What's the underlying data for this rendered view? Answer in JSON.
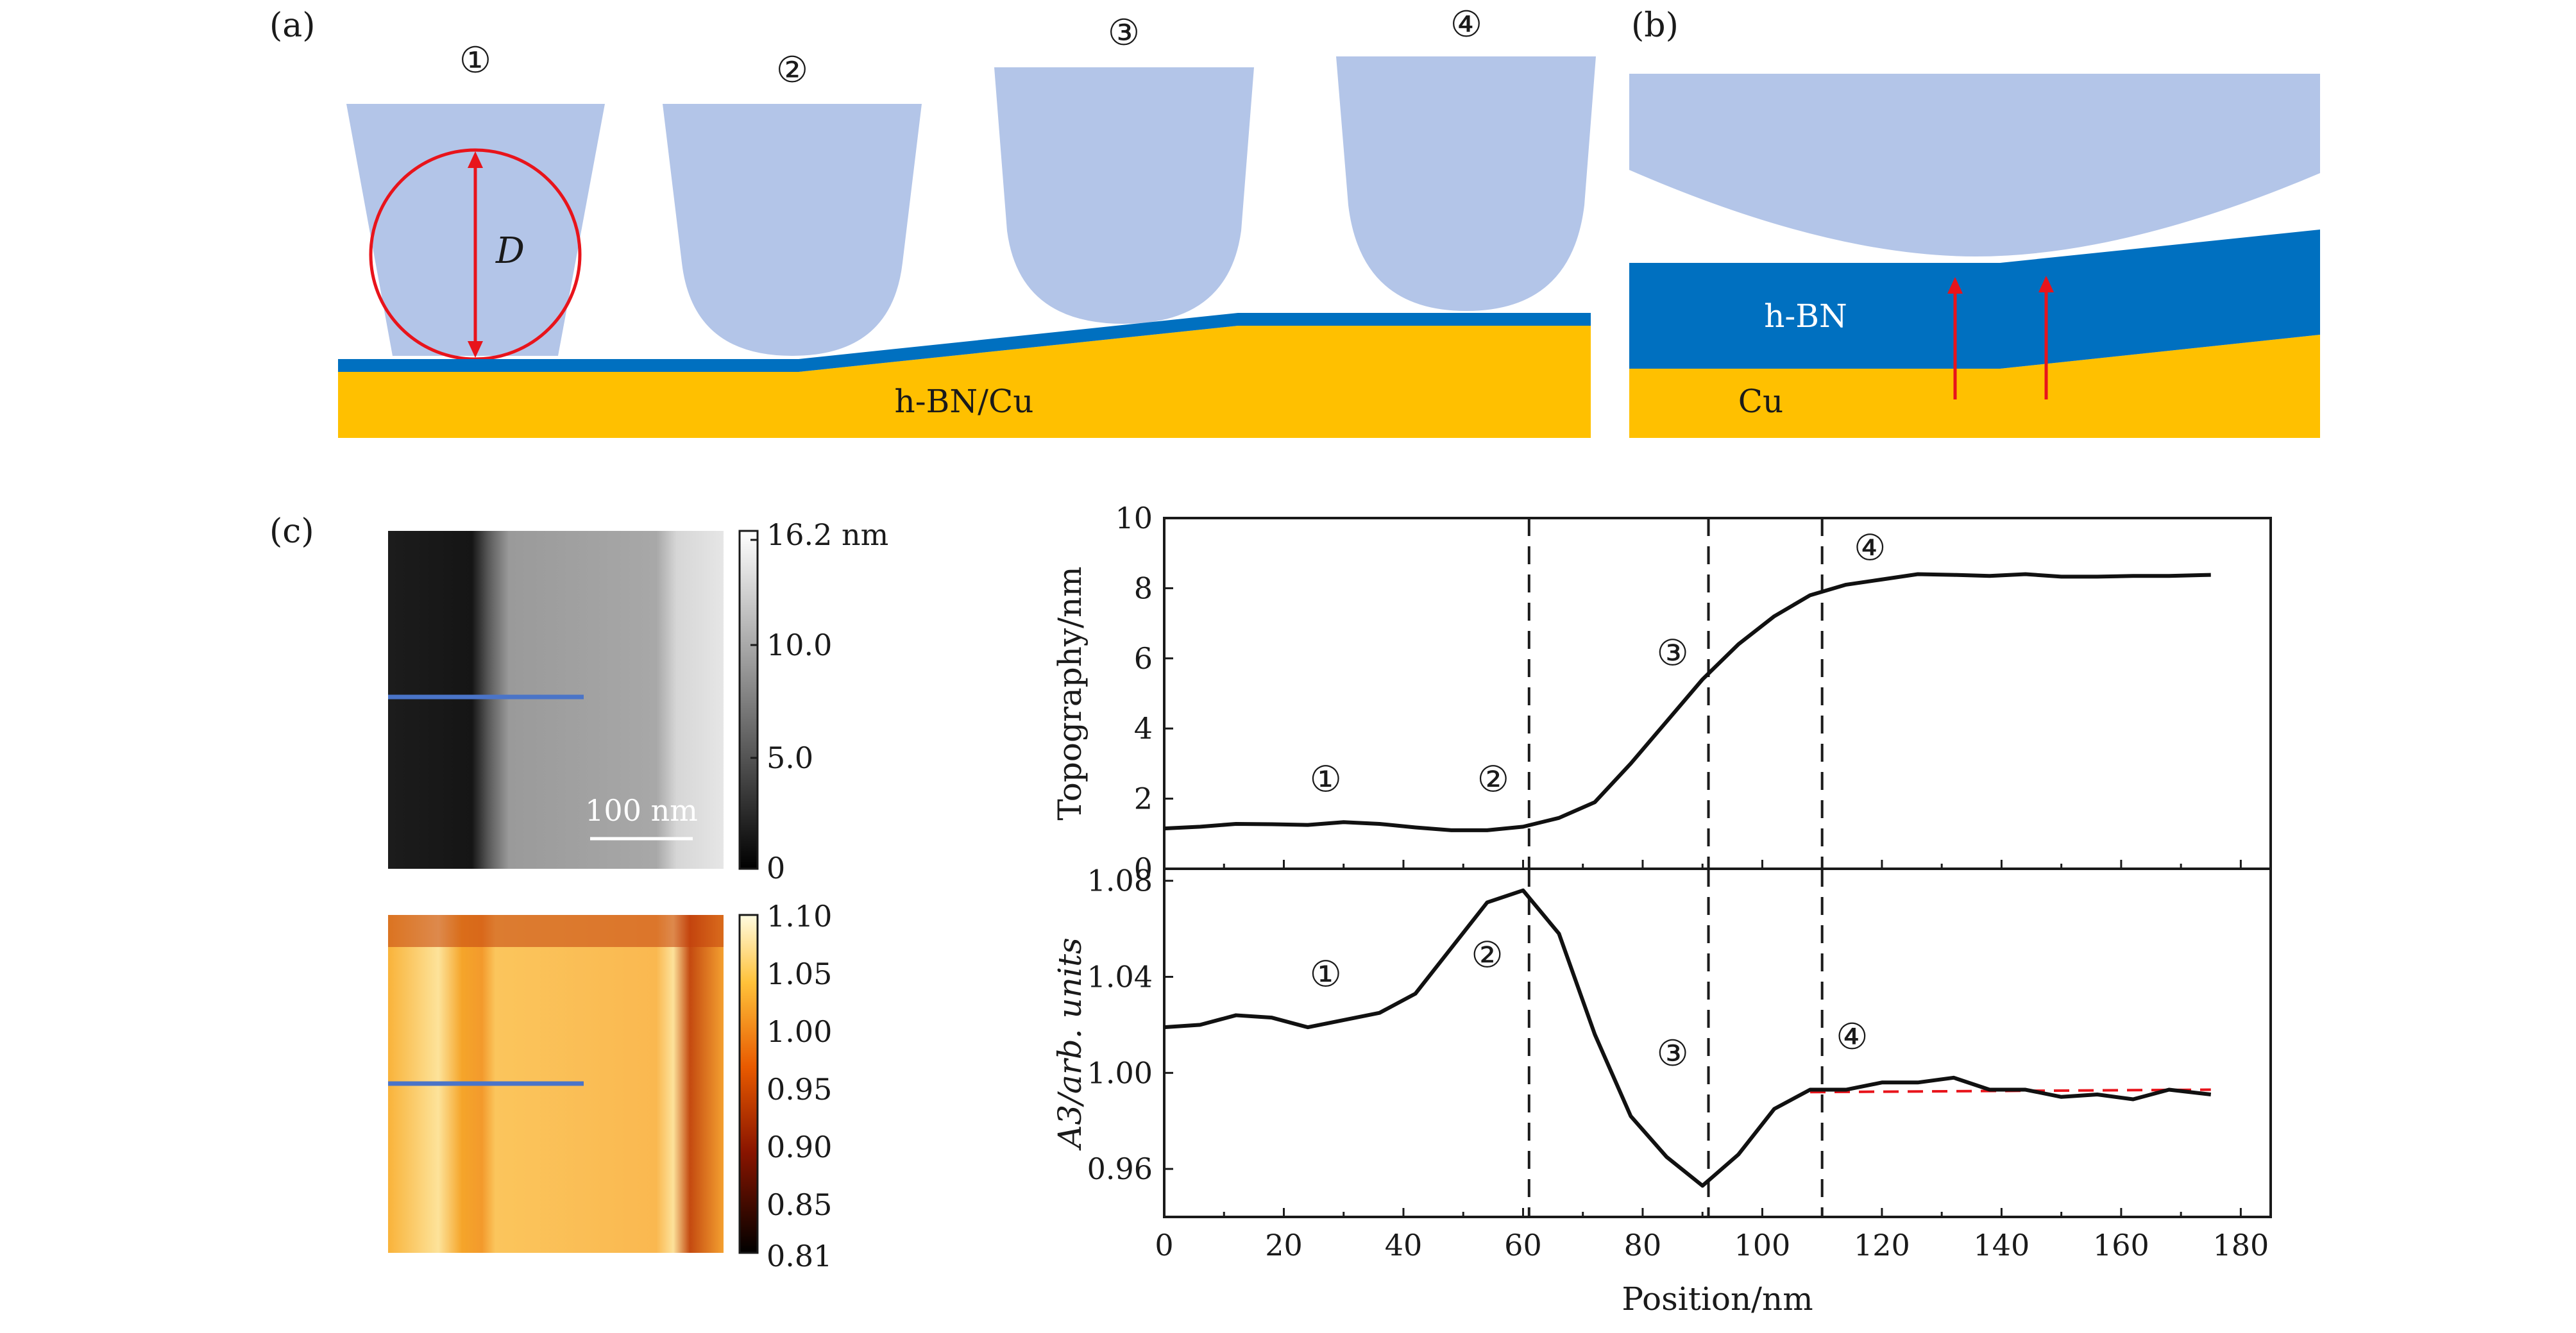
{
  "panel_labels": {
    "a": "(a)",
    "b": "(b)",
    "c": "(c)"
  },
  "schematic": {
    "tip_markers": [
      "①",
      "②",
      "③",
      "④"
    ],
    "diameter_label": "D",
    "substrate_label": "h-BN/Cu",
    "hbn_label": "h-BN",
    "cu_label": "Cu",
    "colors": {
      "tip": "#b3c5e8",
      "hbn": "#0070c0",
      "cu": "#ffc000",
      "arrow": "#e8141b",
      "circle": "#e8141b"
    }
  },
  "topo_image": {
    "colorbar_ticks": [
      "16.2 nm",
      "10.0",
      "5.0",
      "0"
    ],
    "scale_bar_label": "100 nm",
    "line_color": "#4a74c8"
  },
  "a3_image": {
    "colorbar_ticks": [
      "1.10",
      "1.05",
      "1.00",
      "0.95",
      "0.90",
      "0.85",
      "0.81"
    ],
    "line_color": "#4a74c8"
  },
  "chart_data": [
    {
      "type": "line",
      "ylabel": "Topography/nm",
      "xlim": [
        0,
        185
      ],
      "ylim": [
        0,
        10
      ],
      "yticks": [
        "0",
        "2",
        "4",
        "6",
        "8",
        "10"
      ],
      "x": [
        0,
        6,
        12,
        18,
        24,
        30,
        36,
        42,
        48,
        54,
        60,
        66,
        72,
        78,
        84,
        90,
        96,
        102,
        108,
        114,
        120,
        126,
        132,
        138,
        144,
        150,
        156,
        162,
        168,
        175
      ],
      "series": [
        {
          "values": [
            1.15,
            1.2,
            1.28,
            1.27,
            1.25,
            1.33,
            1.28,
            1.18,
            1.1,
            1.1,
            1.2,
            1.45,
            1.9,
            3.0,
            4.2,
            5.4,
            6.4,
            7.2,
            7.8,
            8.1,
            8.25,
            8.4,
            8.38,
            8.35,
            8.4,
            8.33,
            8.33,
            8.35,
            8.35,
            8.38
          ]
        }
      ],
      "vlines": [
        61,
        91,
        110
      ],
      "annotations": [
        {
          "text": "①",
          "x": 27,
          "y": 2.2
        },
        {
          "text": "②",
          "x": 55,
          "y": 2.2
        },
        {
          "text": "③",
          "x": 85,
          "y": 5.8
        },
        {
          "text": "④",
          "x": 118,
          "y": 8.8
        }
      ]
    },
    {
      "type": "line",
      "ylabel": "A3/arb. units",
      "xlabel": "Position/nm",
      "xlim": [
        0,
        185
      ],
      "ylim": [
        0.94,
        1.085
      ],
      "xticks": [
        "0",
        "20",
        "40",
        "60",
        "80",
        "100",
        "120",
        "140",
        "160",
        "180"
      ],
      "yticks": [
        "0.96",
        "1.00",
        "1.04",
        "1.08"
      ],
      "x": [
        0,
        6,
        12,
        18,
        24,
        30,
        36,
        42,
        48,
        54,
        60,
        66,
        72,
        78,
        84,
        90,
        96,
        102,
        108,
        114,
        120,
        126,
        132,
        138,
        144,
        150,
        156,
        162,
        168,
        175
      ],
      "series": [
        {
          "values": [
            1.019,
            1.02,
            1.024,
            1.023,
            1.019,
            1.022,
            1.025,
            1.033,
            1.052,
            1.071,
            1.076,
            1.058,
            1.016,
            0.982,
            0.965,
            0.953,
            0.966,
            0.985,
            0.993,
            0.993,
            0.996,
            0.996,
            0.998,
            0.993,
            0.993,
            0.99,
            0.991,
            0.989,
            0.993,
            0.991
          ]
        }
      ],
      "dashed_fit": {
        "x": [
          108,
          175
        ],
        "y": [
          0.992,
          0.993
        ],
        "color": "#e8141b"
      },
      "vlines": [
        61,
        91,
        110
      ],
      "annotations": [
        {
          "text": "①",
          "x": 27,
          "y": 1.036
        },
        {
          "text": "②",
          "x": 54,
          "y": 1.044
        },
        {
          "text": "③",
          "x": 85,
          "y": 1.003
        },
        {
          "text": "④",
          "x": 115,
          "y": 1.01
        }
      ]
    }
  ]
}
